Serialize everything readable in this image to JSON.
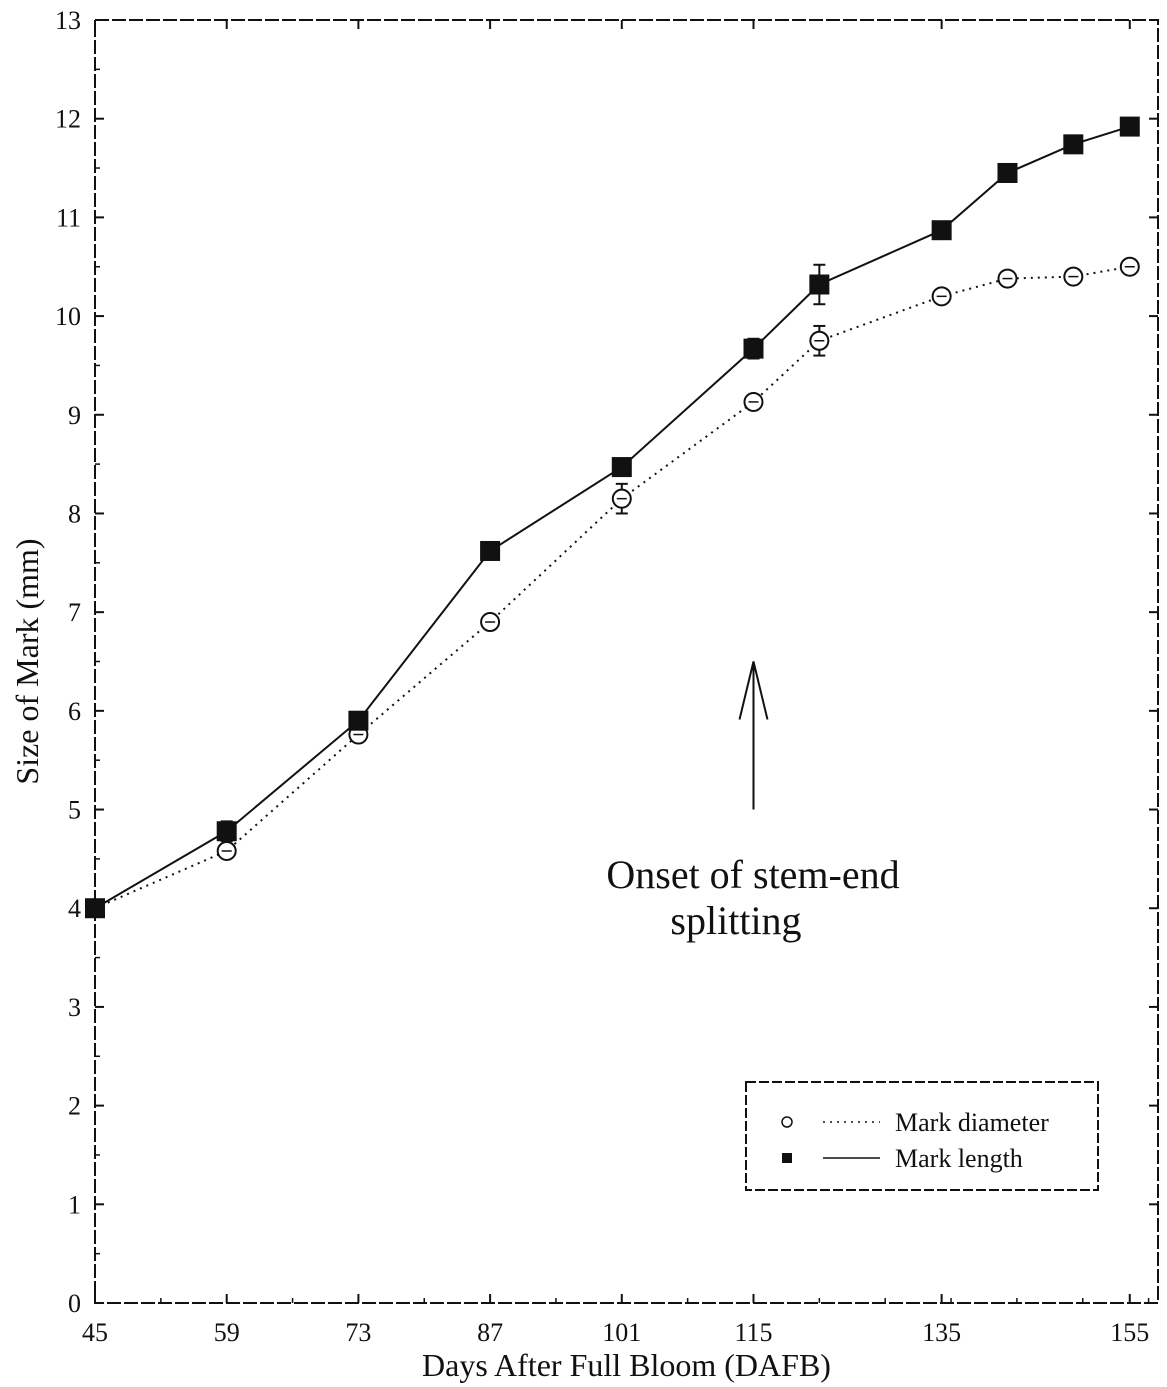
{
  "chart_data": {
    "type": "line",
    "title": "",
    "xlabel": "Days After Full Bloom (DAFB)",
    "ylabel": "Size of Mark (mm)",
    "xlim": [
      45,
      158
    ],
    "ylim": [
      0,
      13
    ],
    "x_ticks": [
      45,
      59,
      73,
      87,
      101,
      115,
      135,
      155
    ],
    "y_ticks": [
      0,
      1,
      2,
      3,
      4,
      5,
      6,
      7,
      8,
      9,
      10,
      11,
      12,
      13
    ],
    "grid": false,
    "legend_position": "bottom-right",
    "series": [
      {
        "name": "Mark diameter",
        "line_style": "dotted",
        "marker": "open-circle",
        "x": [
          45,
          59,
          73,
          87,
          101,
          115,
          122,
          135,
          142,
          149,
          155
        ],
        "y": [
          4.0,
          4.58,
          5.76,
          6.9,
          8.15,
          9.13,
          9.75,
          10.2,
          10.38,
          10.4,
          10.5
        ],
        "error": [
          0.05,
          0.06,
          0.06,
          0.06,
          0.15,
          0.06,
          0.15,
          0.05,
          0.05,
          0.05,
          0.07
        ]
      },
      {
        "name": "Mark length",
        "line_style": "solid",
        "marker": "filled-square",
        "x": [
          45,
          59,
          73,
          87,
          101,
          115,
          122,
          135,
          142,
          149,
          155
        ],
        "y": [
          4.0,
          4.78,
          5.9,
          7.62,
          8.47,
          9.67,
          10.32,
          10.87,
          11.45,
          11.74,
          11.92
        ],
        "error": [
          0.05,
          0.1,
          0.05,
          0.05,
          0.05,
          0.1,
          0.2,
          0.05,
          0.05,
          0.05,
          0.05
        ]
      }
    ],
    "annotation": {
      "lines": [
        "Onset of stem-end",
        "splitting"
      ],
      "arrow_x": 115,
      "arrow_from_y": 5.0,
      "arrow_to_y": 6.5
    }
  }
}
